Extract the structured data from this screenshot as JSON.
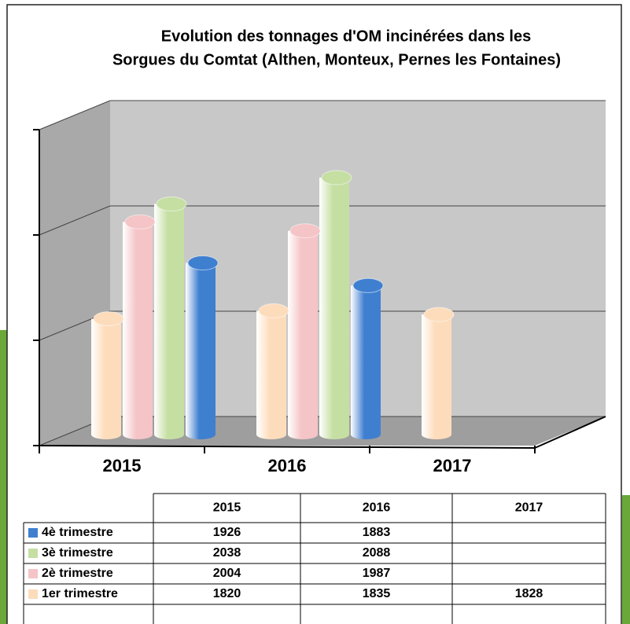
{
  "chart_data": {
    "type": "bar3d",
    "title": [
      "Evolution des tonnages d'OM incinérées dans les",
      "Sorgues du Comtat (Althen, Monteux, Pernes les Fontaines)"
    ],
    "categories": [
      "2015",
      "2016",
      "2017"
    ],
    "series": [
      {
        "name": "4è trimestre",
        "color": "#3f7fd0",
        "values": [
          1926,
          1883,
          null
        ]
      },
      {
        "name": "3è trimestre",
        "color": "#c5dfa3",
        "values": [
          2038,
          2088,
          null
        ]
      },
      {
        "name": "2è trimestre",
        "color": "#f4c4c7",
        "values": [
          2004,
          1987,
          null
        ]
      },
      {
        "name": "1er trimestre",
        "color": "#fddcbc",
        "values": [
          1820,
          1835,
          1828
        ]
      }
    ],
    "ylim": [
      1600,
      2200
    ],
    "yticks": [
      1600,
      1800,
      2000,
      2200
    ],
    "grid": true
  }
}
